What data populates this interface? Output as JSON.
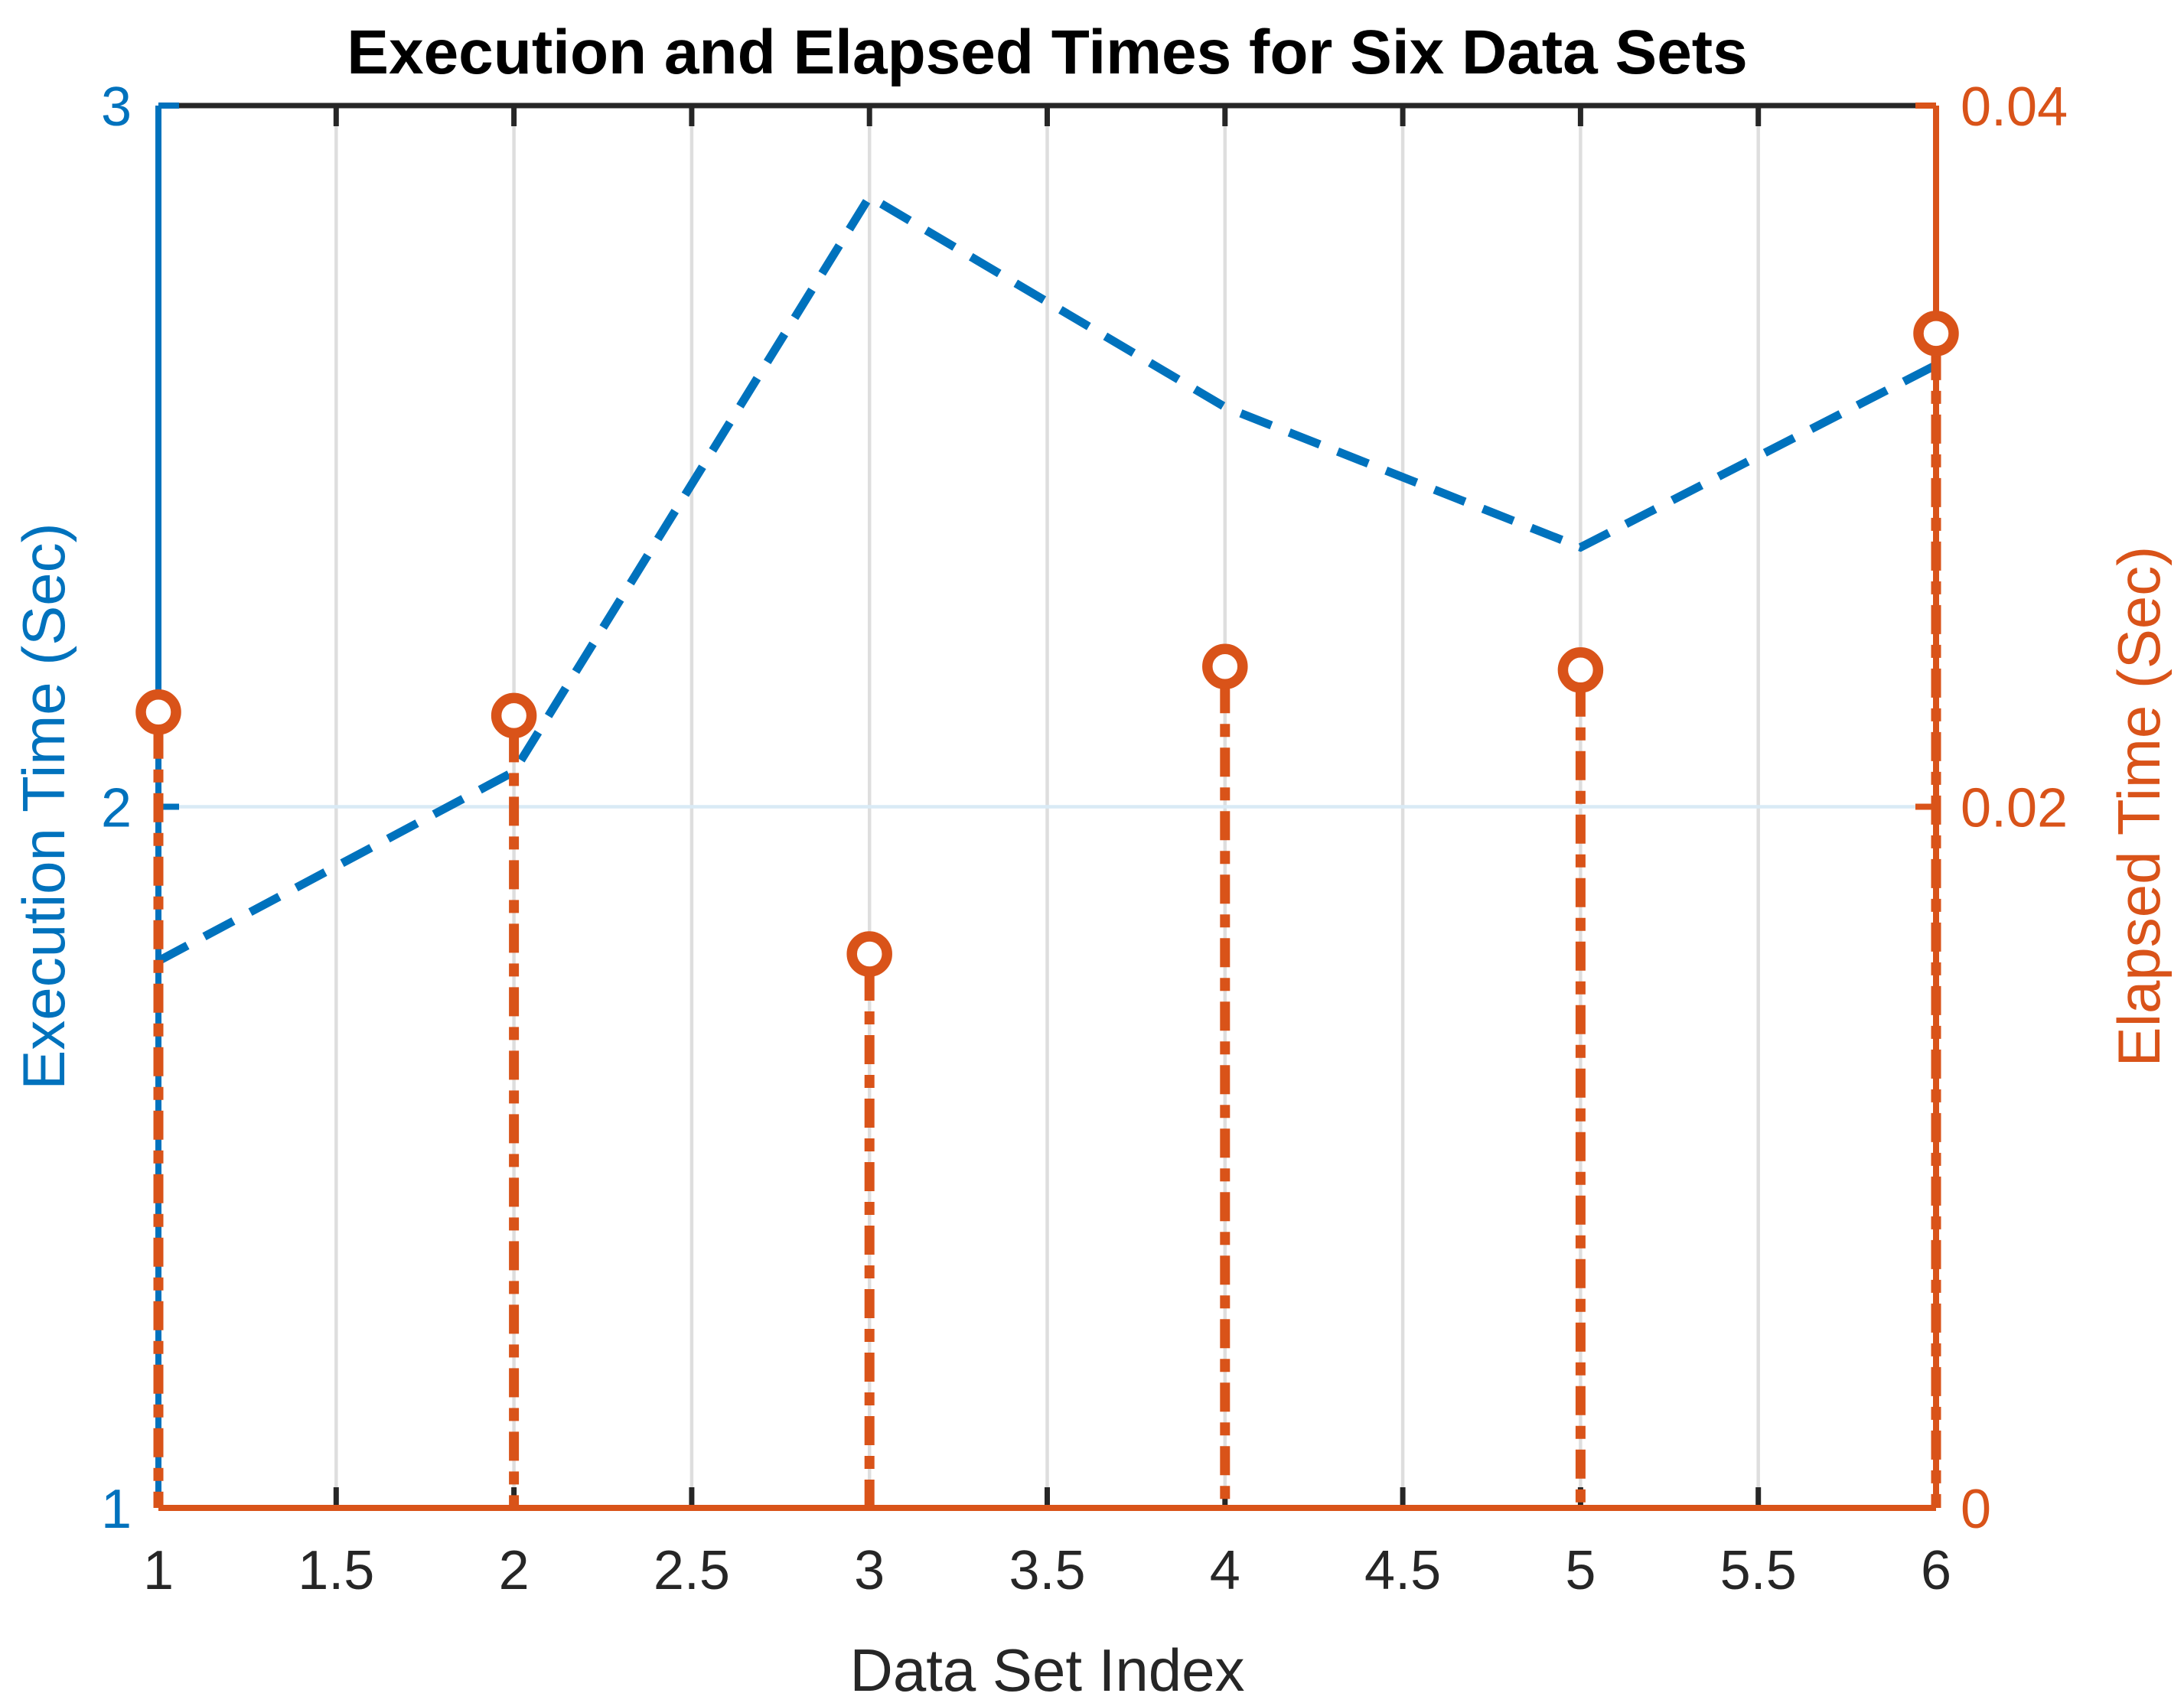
{
  "title": "Execution and Elapsed Times for Six Data Sets",
  "chart_data": {
    "type": "line",
    "subtype": "dual-axis line (dashed) + stem (dash-dot with circle markers)",
    "x": [
      1,
      2,
      3,
      4,
      5,
      6
    ],
    "series": [
      {
        "name": "Execution Time",
        "axis": "left",
        "style": "dashed-line",
        "color": "#0072BD",
        "values": [
          1.78,
          2.05,
          2.87,
          2.57,
          2.37,
          2.63
        ]
      },
      {
        "name": "Elapsed Time",
        "axis": "right",
        "style": "stem-dashdot-circle-markers",
        "color": "#D95319",
        "values": [
          0.0227,
          0.0226,
          0.0158,
          0.024,
          0.0239,
          0.0335
        ]
      }
    ],
    "xlabel": "Data Set Index",
    "ylabel_left": "Execution Time (Sec)",
    "ylabel_right": "Elapsed Time (Sec)",
    "xlim": [
      1,
      6
    ],
    "ylim_left": [
      1,
      3
    ],
    "ylim_right": [
      0,
      0.04
    ],
    "xticks": [
      1,
      1.5,
      2,
      2.5,
      3,
      3.5,
      4,
      4.5,
      5,
      5.5,
      6
    ],
    "xtick_labels": [
      "1",
      "1.5",
      "2",
      "2.5",
      "3",
      "3.5",
      "4",
      "4.5",
      "5",
      "5.5",
      "6"
    ],
    "yticks_left": [
      1,
      2,
      3
    ],
    "ytick_labels_left": [
      "1",
      "2",
      "3"
    ],
    "yticks_right": [
      0,
      0.02,
      0.04
    ],
    "ytick_labels_right": [
      "0",
      "0.02",
      "0.04"
    ],
    "grid": "vertical gridlines at every x tick; horizontal gridline at 2 / 0.02",
    "legend": "none",
    "colors": {
      "blue": "#0072BD",
      "orange": "#D95319",
      "axis_dark": "#262626",
      "grid_x": "#DEDEDE",
      "grid_y": "#D9EAF5",
      "background": "#FFFFFF"
    }
  }
}
